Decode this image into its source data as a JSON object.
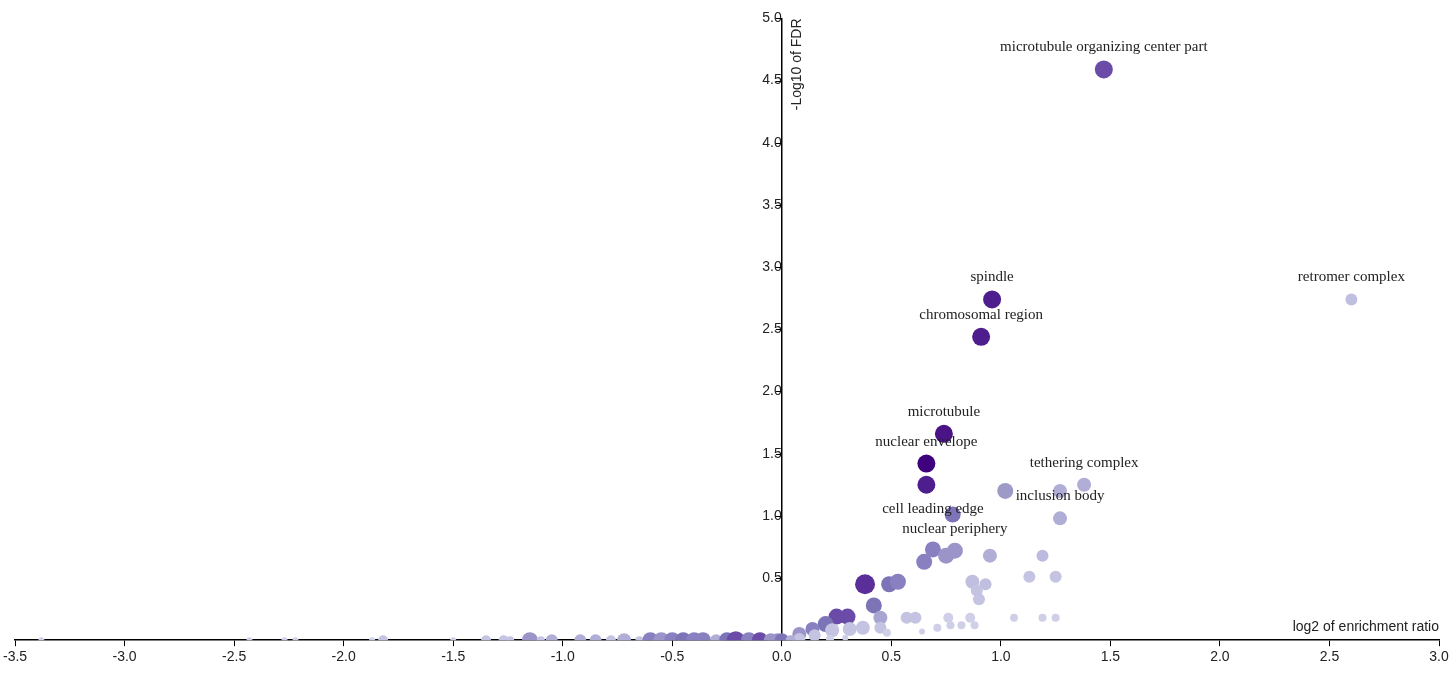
{
  "chart_data": {
    "type": "bubble",
    "xlabel": "log2 of enrichment ratio",
    "ylabel": "-Log10 of FDR",
    "xlim": [
      -3.5,
      3.0
    ],
    "xticks": [
      {
        "value": -3.5,
        "label": "-3.5"
      },
      {
        "value": -3,
        "label": "-3.0"
      },
      {
        "value": -2.5,
        "label": "-2.5"
      },
      {
        "value": -2,
        "label": "-2.0"
      },
      {
        "value": -1.5,
        "label": "-1.5"
      },
      {
        "value": -1,
        "label": "-1.0"
      },
      {
        "value": -0.5,
        "label": "-0.5"
      },
      {
        "value": 0,
        "label": "0.0"
      },
      {
        "value": 0.5,
        "label": "0.5"
      },
      {
        "value": 1,
        "label": "1.0"
      },
      {
        "value": 1.5,
        "label": "1.5"
      },
      {
        "value": 2,
        "label": "2.0"
      },
      {
        "value": 2.5,
        "label": "2.5"
      },
      {
        "value": 3,
        "label": "3.0"
      }
    ],
    "ylim": [
      0,
      5
    ],
    "yticks": [
      {
        "value": 0.5,
        "label": "0.5"
      },
      {
        "value": 1,
        "label": "1.0"
      },
      {
        "value": 1.5,
        "label": "1.5"
      },
      {
        "value": 2,
        "label": "2.0"
      },
      {
        "value": 2.5,
        "label": "2.5"
      },
      {
        "value": 3,
        "label": "3.0"
      },
      {
        "value": 3.5,
        "label": "3.5"
      },
      {
        "value": 4,
        "label": "4.0"
      },
      {
        "value": 4.5,
        "label": "4.5"
      },
      {
        "value": 5,
        "label": "5.0"
      }
    ],
    "x": [
      1.47,
      0.96,
      0.91,
      2.6,
      0.74,
      0.66,
      0.66,
      1.02,
      1.27,
      1.38,
      1.27,
      0.78,
      0.69,
      0.65,
      0.75,
      0.79,
      0.95,
      1.19,
      1.13,
      1.25,
      0.87,
      0.93,
      0.89,
      0.9,
      0.38,
      0.49,
      0.53,
      0.42,
      1.06,
      1.19,
      1.25,
      0.76,
      0.86,
      0.77,
      0.82,
      0.88,
      0.71,
      0.64,
      0.57,
      0.61,
      0.45,
      0.45,
      0.48,
      0.25,
      0.3,
      0.2,
      0.14,
      0.08,
      0.23,
      0.31,
      0.37,
      0.15,
      0.08,
      0.22,
      0.29,
      -3.38,
      -2.43,
      -2.27,
      -2.22,
      -1.87,
      -1.82,
      -1.5,
      -1.35,
      -1.27,
      -1.24,
      -1.15,
      -1.1,
      -1.05,
      -0.92,
      -0.85,
      -0.78,
      -0.72,
      -0.65,
      -0.6,
      -0.55,
      -0.5,
      -0.45,
      -0.4,
      -0.36,
      -0.3,
      -0.25,
      -0.21,
      -0.15,
      -0.1,
      -0.05,
      -0.02,
      0.0,
      0.04
    ],
    "values": [
      4.59,
      2.74,
      2.44,
      2.74,
      1.66,
      1.42,
      1.25,
      1.2,
      1.2,
      1.25,
      0.98,
      1.01,
      0.73,
      0.63,
      0.68,
      0.72,
      0.68,
      0.68,
      0.51,
      0.51,
      0.47,
      0.45,
      0.4,
      0.33,
      0.45,
      0.45,
      0.47,
      0.28,
      0.18,
      0.18,
      0.18,
      0.18,
      0.18,
      0.12,
      0.12,
      0.12,
      0.1,
      0.07,
      0.18,
      0.18,
      0.18,
      0.1,
      0.06,
      0.19,
      0.19,
      0.13,
      0.09,
      0.05,
      0.08,
      0.09,
      0.1,
      0.04,
      0.01,
      0.01,
      0.02,
      0,
      0,
      0,
      0,
      0,
      0,
      0,
      0,
      0,
      0,
      0,
      0,
      0,
      0,
      0,
      0,
      0,
      0,
      0,
      0,
      0,
      0,
      0,
      0,
      0,
      0,
      0,
      0,
      0,
      0,
      0,
      0,
      0
    ],
    "sizes": [
      0.81,
      0.81,
      0.81,
      0.36,
      0.81,
      0.81,
      0.81,
      0.64,
      0.49,
      0.49,
      0.49,
      0.64,
      0.64,
      0.64,
      0.64,
      0.64,
      0.49,
      0.36,
      0.36,
      0.36,
      0.49,
      0.36,
      0.36,
      0.36,
      1,
      0.64,
      0.64,
      0.64,
      0.16,
      0.16,
      0.16,
      0.25,
      0.25,
      0.16,
      0.16,
      0.16,
      0.16,
      0.09,
      0.36,
      0.36,
      0.49,
      0.36,
      0.16,
      0.64,
      0.64,
      0.64,
      0.49,
      0.49,
      0.49,
      0.49,
      0.49,
      0.36,
      0.36,
      0.16,
      0.09,
      0.09,
      0.09,
      0.09,
      0.09,
      0.09,
      0.25,
      0.09,
      0.25,
      0.25,
      0.16,
      0.64,
      0.16,
      0.36,
      0.36,
      0.36,
      0.25,
      0.49,
      0.16,
      0.64,
      0.64,
      0.64,
      0.64,
      0.64,
      0.64,
      0.36,
      0.64,
      0.81,
      0.64,
      0.64,
      0.49,
      0.49,
      0.49,
      0.25
    ],
    "colors": [
      "#6a4ca8",
      "#4e1d8e",
      "#4e1d8e",
      "#c0bfe0",
      "#4a1486",
      "#3f007d",
      "#4e1d8e",
      "#9e9ac8",
      "#b0aed6",
      "#b0aed6",
      "#b0aed6",
      "#7d74b8",
      "#8880c0",
      "#8880c0",
      "#9a94c8",
      "#9a94c8",
      "#b0aed6",
      "#bcbade",
      "#c4c3e2",
      "#c4c3e2",
      "#c0bfe0",
      "#c0bfe0",
      "#c4c3e2",
      "#c4c3e2",
      "#5b2f9a",
      "#7d74b8",
      "#8880c0",
      "#7d74b8",
      "#d0cfe8",
      "#d0cfe8",
      "#d0cfe8",
      "#d0cfe8",
      "#d0cfe8",
      "#d0cfe8",
      "#d0cfe8",
      "#d0cfe8",
      "#d0cfe8",
      "#d0cfe8",
      "#c4c3e2",
      "#c4c3e2",
      "#a9a5d2",
      "#c4c3e2",
      "#d0cfe8",
      "#6a4ca8",
      "#6a4ca8",
      "#7d74b8",
      "#8880c0",
      "#9a94c8",
      "#c4c3e2",
      "#c4c3e2",
      "#c4c3e2",
      "#c4c3e2",
      "#c4c3e2",
      "#d0cfe8",
      "#d0cfe8",
      "#d0cfe8",
      "#d0cfe8",
      "#d0cfe8",
      "#d0cfe8",
      "#d0cfe8",
      "#c4c3e2",
      "#d0cfe8",
      "#c4c3e2",
      "#c4c3e2",
      "#c4c3e2",
      "#9a94c8",
      "#c4c3e2",
      "#b0aed6",
      "#b0aed6",
      "#b0aed6",
      "#c4c3e2",
      "#b0aed6",
      "#c4c3e2",
      "#8880c0",
      "#9a94c8",
      "#8880c0",
      "#7d74b8",
      "#8880c0",
      "#8880c0",
      "#b0aed6",
      "#7d74b8",
      "#6a4ca8",
      "#8880c0",
      "#6a4ca8",
      "#9a94c8",
      "#9a94c8",
      "#7d74b8",
      "#b0aed6"
    ],
    "annotations": [
      {
        "text": "microtubule organizing center part",
        "x": 1.47,
        "y": 4.59
      },
      {
        "text": "spindle",
        "x": 0.96,
        "y": 2.74
      },
      {
        "text": "chromosomal region",
        "x": 0.91,
        "y": 2.44
      },
      {
        "text": "retromer complex",
        "x": 2.6,
        "y": 2.74
      },
      {
        "text": "microtubule",
        "x": 0.74,
        "y": 1.66
      },
      {
        "text": "tethering complex",
        "x": 1.38,
        "y": 1.25
      },
      {
        "text": "nuclear envelope",
        "x": 0.66,
        "y": 1.42
      },
      {
        "text": "inclusion body",
        "x": 1.27,
        "y": 0.98
      },
      {
        "text": "nuclear periphery",
        "x": 0.79,
        "y": 0.72
      },
      {
        "text": "cell leading edge",
        "x": 0.69,
        "y": 0.73
      }
    ]
  }
}
